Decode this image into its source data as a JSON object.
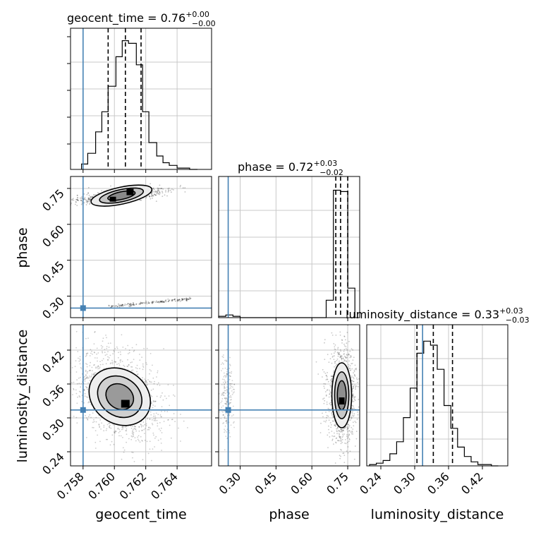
{
  "chart_data": {
    "type": "corner",
    "parameters": [
      "geocent_time",
      "phase",
      "luminosity_distance"
    ],
    "axes": {
      "geocent_time": {
        "range": [
          0.7572,
          0.7662
        ],
        "ticks": [
          0.758,
          0.76,
          0.762,
          0.764
        ],
        "tick_labels": [
          "0.758",
          "0.760",
          "0.762",
          "0.764"
        ],
        "label": "geocent_time"
      },
      "phase": {
        "range": [
          0.21,
          0.8
        ],
        "ticks": [
          0.3,
          0.45,
          0.6,
          0.75
        ],
        "tick_labels": [
          "0.30",
          "0.45",
          "0.60",
          "0.75"
        ],
        "label": "phase"
      },
      "luminosity_distance": {
        "range": [
          0.215,
          0.465
        ],
        "ticks": [
          0.24,
          0.3,
          0.36,
          0.42
        ],
        "tick_labels": [
          "0.24",
          "0.30",
          "0.36",
          "0.42"
        ],
        "label": "luminosity_distance"
      }
    },
    "truths": {
      "geocent_time": 0.758,
      "phase": 0.25,
      "luminosity_distance": 0.314
    },
    "truth_color": "#4682b4",
    "grid": true,
    "marginals": [
      {
        "param": "geocent_time",
        "title": {
          "base": "geocent_time = 0.76",
          "sup": "+0.00",
          "sub": "−0.00"
        },
        "quantiles": [
          0.7596,
          0.7607,
          0.7617
        ],
        "edges": [
          0.7579,
          0.7583,
          0.7588,
          0.7592,
          0.7596,
          0.7601,
          0.7605,
          0.7609,
          0.7614,
          0.7618,
          0.7622,
          0.7627,
          0.7631,
          0.7635,
          0.764,
          0.7644,
          0.7648,
          0.7653
        ],
        "counts": [
          0.04,
          0.12,
          0.28,
          0.43,
          0.62,
          0.84,
          0.96,
          0.94,
          0.78,
          0.43,
          0.2,
          0.1,
          0.05,
          0.03,
          0.01,
          0.01,
          0.0
        ]
      },
      {
        "param": "phase",
        "title": {
          "base": "phase = 0.72",
          "sup": "+0.03",
          "sub": "−0.02"
        },
        "quantiles": [
          0.7,
          0.72,
          0.75
        ],
        "edges": [
          0.21,
          0.24,
          0.27,
          0.3,
          0.33,
          0.36,
          0.39,
          0.42,
          0.45,
          0.48,
          0.51,
          0.54,
          0.57,
          0.6,
          0.63,
          0.66,
          0.69,
          0.72,
          0.75,
          0.78
        ],
        "counts": [
          0.01,
          0.02,
          0.01,
          0.0,
          0.0,
          0.0,
          0.0,
          0.0,
          0.0,
          0.0,
          0.0,
          0.0,
          0.0,
          0.0,
          0.0,
          0.13,
          0.95,
          0.94,
          0.22
        ]
      },
      {
        "param": "luminosity_distance",
        "title": {
          "base": "luminosity_distance = 0.33",
          "sup": "+0.03",
          "sub": "−0.03"
        },
        "quantiles": [
          0.304,
          0.333,
          0.367
        ],
        "edges": [
          0.22,
          0.232,
          0.244,
          0.256,
          0.268,
          0.28,
          0.292,
          0.304,
          0.316,
          0.328,
          0.34,
          0.352,
          0.364,
          0.376,
          0.388,
          0.4,
          0.412,
          0.424,
          0.436,
          0.448
        ],
        "counts": [
          0.01,
          0.02,
          0.04,
          0.09,
          0.18,
          0.36,
          0.58,
          0.84,
          0.93,
          0.9,
          0.72,
          0.45,
          0.28,
          0.14,
          0.07,
          0.03,
          0.01,
          0.01,
          0.0
        ]
      }
    ],
    "joint": [
      {
        "x": "geocent_time",
        "y": "phase",
        "modes": [
          [
            0.7599,
            0.705
          ],
          [
            0.761,
            0.735
          ]
        ],
        "tail": {
          "from": [
            0.7597,
            0.255
          ],
          "to": [
            0.765,
            0.29
          ]
        }
      },
      {
        "x": "geocent_time",
        "y": "luminosity_distance",
        "mode": [
          0.7607,
          0.325
        ]
      },
      {
        "x": "phase",
        "y": "luminosity_distance",
        "mode": [
          0.725,
          0.33
        ]
      }
    ]
  }
}
